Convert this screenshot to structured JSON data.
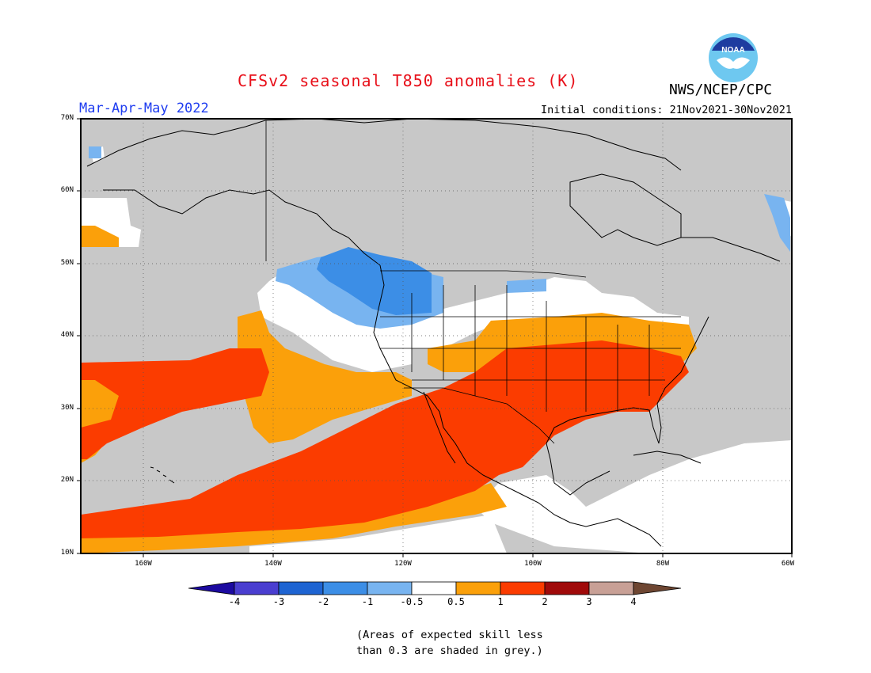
{
  "title": "CFSv2 seasonal T850 anomalies (K)",
  "season": "Mar-Apr-May 2022",
  "initial_conditions": "Initial conditions: 21Nov2021-30Nov2021",
  "agency": "NWS/NCEP/CPC",
  "logo_text": "NOAA",
  "lat_ticks": [
    "70N",
    "60N",
    "50N",
    "40N",
    "30N",
    "20N",
    "10N"
  ],
  "lon_ticks": [
    "160W",
    "140W",
    "120W",
    "100W",
    "80W",
    "60W"
  ],
  "colorbar": {
    "labels": [
      "-4",
      "-3",
      "-2",
      "-1",
      "-0.5",
      "0.5",
      "1",
      "2",
      "3",
      "4"
    ],
    "colors": [
      "#1c0aa0",
      "#4a3ed0",
      "#1e64d2",
      "#3c8ee6",
      "#78b4f0",
      "#ffffff",
      "#fba00a",
      "#fb3c00",
      "#a00a0a",
      "#c8a096",
      "#6e4632"
    ]
  },
  "note_line1": "(Areas of expected skill less",
  "note_line2": "than 0.3 are shaded in grey.)",
  "colors": {
    "grey_mask": "#c8c8c8",
    "land_outline": "#000000"
  }
}
